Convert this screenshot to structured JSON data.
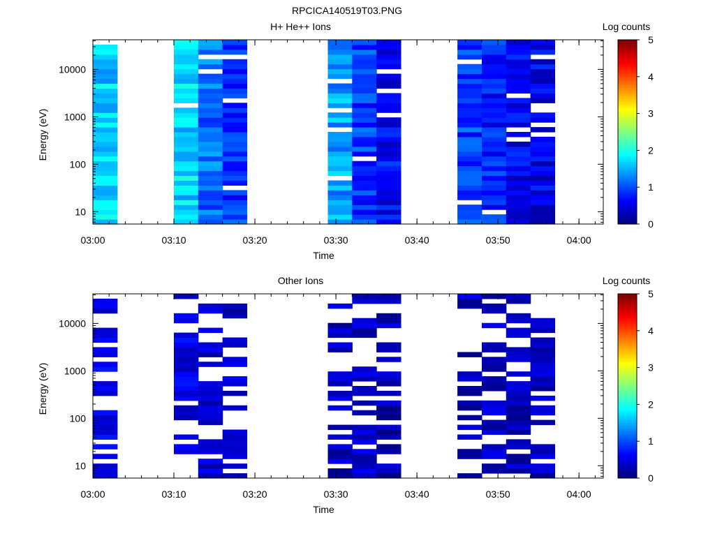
{
  "page_title": "RPCICA140519T03.PNG",
  "chart_data": [
    {
      "type": "heatmap",
      "title": "H+ He++ Ions",
      "xlabel": "Time",
      "ylabel": "Energy (eV)",
      "y_scale": "log",
      "ylim": [
        5.5,
        42000
      ],
      "xlim": [
        "03:00",
        "04:03"
      ],
      "x_ticks": [
        "03:00",
        "03:10",
        "03:20",
        "03:30",
        "03:40",
        "03:50",
        "04:00"
      ],
      "y_ticks": [
        "10",
        "100",
        "1000",
        "10000"
      ],
      "colorbar": {
        "label": "Log counts",
        "range": [
          0,
          5
        ],
        "ticks": [
          "0",
          "1",
          "2",
          "3",
          "4",
          "5"
        ]
      },
      "columns": [
        {
          "start": "03:00",
          "end": "03:03",
          "level": 1.65
        },
        {
          "start": "03:10",
          "end": "03:13",
          "level": 1.7
        },
        {
          "start": "03:13",
          "end": "03:16",
          "level": 1.15
        },
        {
          "start": "03:16",
          "end": "03:19",
          "level": 0.85
        },
        {
          "start": "03:29",
          "end": "03:32",
          "level": 1.4
        },
        {
          "start": "03:32",
          "end": "03:35",
          "level": 0.9
        },
        {
          "start": "03:35",
          "end": "03:38",
          "level": 0.65
        },
        {
          "start": "03:45",
          "end": "03:48",
          "level": 0.9
        },
        {
          "start": "03:48",
          "end": "03:51",
          "level": 0.75
        },
        {
          "start": "03:51",
          "end": "03:54",
          "level": 0.6
        },
        {
          "start": "03:54",
          "end": "03:57",
          "level": 0.55
        }
      ]
    },
    {
      "type": "heatmap",
      "title": "Other Ions",
      "xlabel": "Time",
      "ylabel": "Energy (eV)",
      "y_scale": "log",
      "ylim": [
        5.5,
        42000
      ],
      "xlim": [
        "03:00",
        "04:03"
      ],
      "x_ticks": [
        "03:00",
        "03:10",
        "03:20",
        "03:30",
        "03:40",
        "03:50",
        "04:00"
      ],
      "y_ticks": [
        "10",
        "100",
        "1000",
        "10000"
      ],
      "colorbar": {
        "label": "Log counts",
        "range": [
          0,
          5
        ],
        "ticks": [
          "0",
          "1",
          "2",
          "3",
          "4",
          "5"
        ]
      },
      "columns": [
        {
          "start": "03:00",
          "end": "03:03",
          "level": 0.5
        },
        {
          "start": "03:10",
          "end": "03:13",
          "level": 0.5
        },
        {
          "start": "03:13",
          "end": "03:16",
          "level": 0.4
        },
        {
          "start": "03:16",
          "end": "03:19",
          "level": 0.35
        },
        {
          "start": "03:29",
          "end": "03:32",
          "level": 0.3
        },
        {
          "start": "03:32",
          "end": "03:35",
          "level": 0.35
        },
        {
          "start": "03:35",
          "end": "03:38",
          "level": 0.25
        },
        {
          "start": "03:45",
          "end": "03:48",
          "level": 0.3
        },
        {
          "start": "03:48",
          "end": "03:51",
          "level": 0.3
        },
        {
          "start": "03:51",
          "end": "03:54",
          "level": 0.3
        },
        {
          "start": "03:54",
          "end": "03:57",
          "level": 0.3
        }
      ]
    }
  ]
}
